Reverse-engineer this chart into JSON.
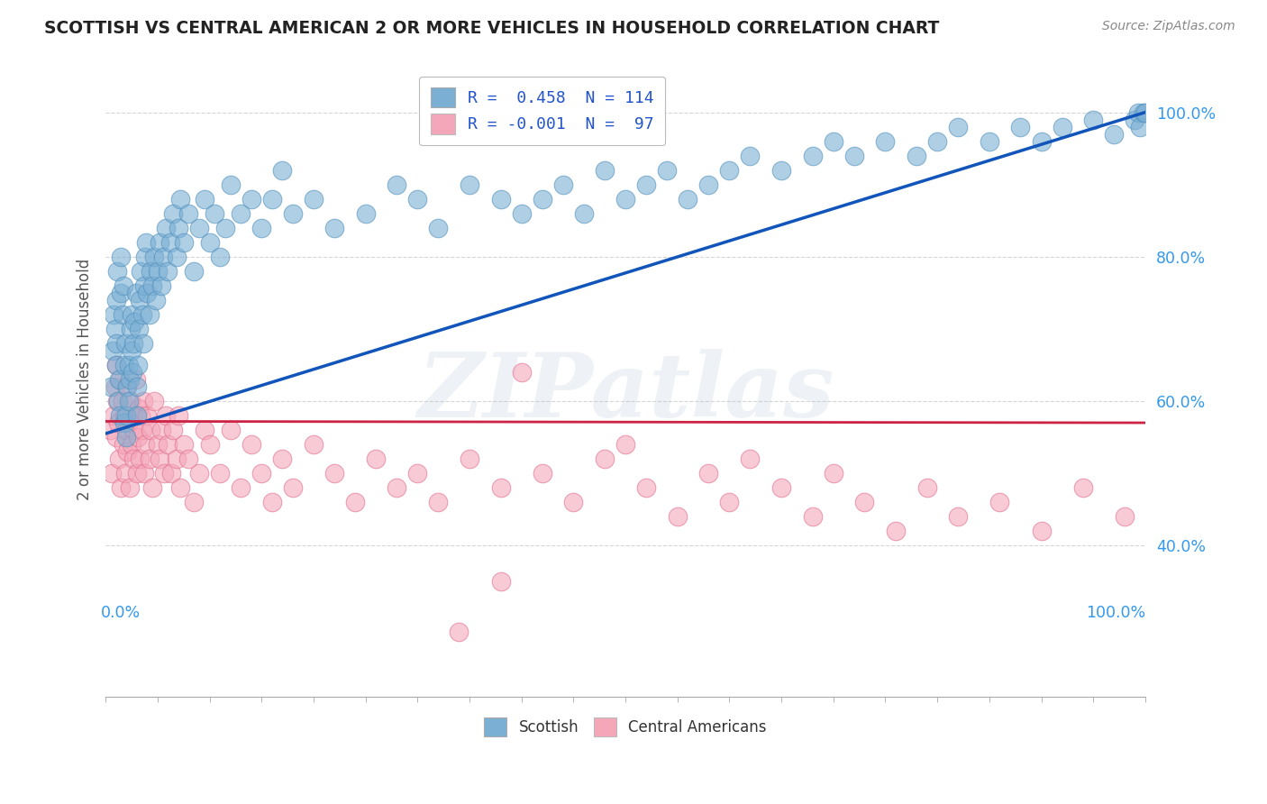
{
  "title": "SCOTTISH VS CENTRAL AMERICAN 2 OR MORE VEHICLES IN HOUSEHOLD CORRELATION CHART",
  "source": "Source: ZipAtlas.com",
  "ylabel": "2 or more Vehicles in Household",
  "yticks_labels": [
    "40.0%",
    "60.0%",
    "80.0%",
    "100.0%"
  ],
  "ytick_values": [
    0.4,
    0.6,
    0.8,
    1.0
  ],
  "legend_blue_text": "R =  0.458  N = 114",
  "legend_pink_text": "R = -0.001  N =  97",
  "legend_label_blue": "Scottish",
  "legend_label_pink": "Central Americans",
  "blue_color": "#7BAFD4",
  "pink_color": "#F4A7B9",
  "blue_edge": "#5090BB",
  "pink_edge": "#E07090",
  "trend_blue": "#1155BB",
  "trend_pink": "#CC2244",
  "watermark": "ZIPatlas",
  "watermark_color": "#AABBD4",
  "blue_line_x": [
    0.0,
    1.0
  ],
  "blue_line_y": [
    0.555,
    1.0
  ],
  "pink_line_x": [
    0.0,
    1.0
  ],
  "pink_line_y": [
    0.572,
    0.57
  ],
  "xlim": [
    0.0,
    1.0
  ],
  "ylim": [
    0.19,
    1.07
  ],
  "blue_scatter_x": [
    0.005,
    0.007,
    0.008,
    0.009,
    0.01,
    0.01,
    0.01,
    0.011,
    0.012,
    0.013,
    0.014,
    0.015,
    0.015,
    0.016,
    0.017,
    0.018,
    0.018,
    0.019,
    0.02,
    0.02,
    0.021,
    0.022,
    0.022,
    0.023,
    0.024,
    0.025,
    0.025,
    0.026,
    0.027,
    0.028,
    0.029,
    0.03,
    0.03,
    0.031,
    0.032,
    0.033,
    0.034,
    0.035,
    0.036,
    0.037,
    0.038,
    0.039,
    0.04,
    0.042,
    0.043,
    0.045,
    0.047,
    0.048,
    0.05,
    0.052,
    0.054,
    0.055,
    0.058,
    0.06,
    0.062,
    0.065,
    0.068,
    0.07,
    0.072,
    0.075,
    0.08,
    0.085,
    0.09,
    0.095,
    0.1,
    0.105,
    0.11,
    0.115,
    0.12,
    0.13,
    0.14,
    0.15,
    0.16,
    0.17,
    0.18,
    0.2,
    0.22,
    0.25,
    0.28,
    0.3,
    0.32,
    0.35,
    0.38,
    0.4,
    0.42,
    0.44,
    0.46,
    0.48,
    0.5,
    0.52,
    0.54,
    0.56,
    0.58,
    0.6,
    0.62,
    0.65,
    0.68,
    0.7,
    0.72,
    0.75,
    0.78,
    0.8,
    0.82,
    0.85,
    0.88,
    0.9,
    0.92,
    0.95,
    0.97,
    0.99,
    0.993,
    0.995,
    0.998,
    1.0
  ],
  "blue_scatter_y": [
    0.62,
    0.67,
    0.72,
    0.7,
    0.74,
    0.68,
    0.65,
    0.78,
    0.6,
    0.63,
    0.58,
    0.75,
    0.8,
    0.72,
    0.76,
    0.57,
    0.65,
    0.68,
    0.55,
    0.58,
    0.62,
    0.6,
    0.65,
    0.63,
    0.7,
    0.67,
    0.72,
    0.64,
    0.68,
    0.71,
    0.75,
    0.58,
    0.62,
    0.65,
    0.7,
    0.74,
    0.78,
    0.72,
    0.68,
    0.76,
    0.8,
    0.82,
    0.75,
    0.72,
    0.78,
    0.76,
    0.8,
    0.74,
    0.78,
    0.82,
    0.76,
    0.8,
    0.84,
    0.78,
    0.82,
    0.86,
    0.8,
    0.84,
    0.88,
    0.82,
    0.86,
    0.78,
    0.84,
    0.88,
    0.82,
    0.86,
    0.8,
    0.84,
    0.9,
    0.86,
    0.88,
    0.84,
    0.88,
    0.92,
    0.86,
    0.88,
    0.84,
    0.86,
    0.9,
    0.88,
    0.84,
    0.9,
    0.88,
    0.86,
    0.88,
    0.9,
    0.86,
    0.92,
    0.88,
    0.9,
    0.92,
    0.88,
    0.9,
    0.92,
    0.94,
    0.92,
    0.94,
    0.96,
    0.94,
    0.96,
    0.94,
    0.96,
    0.98,
    0.96,
    0.98,
    0.96,
    0.98,
    0.99,
    0.97,
    0.99,
    1.0,
    0.98,
    1.0,
    1.0
  ],
  "pink_scatter_x": [
    0.004,
    0.006,
    0.008,
    0.009,
    0.01,
    0.01,
    0.011,
    0.012,
    0.013,
    0.014,
    0.015,
    0.016,
    0.017,
    0.018,
    0.019,
    0.02,
    0.02,
    0.021,
    0.022,
    0.023,
    0.024,
    0.025,
    0.026,
    0.027,
    0.028,
    0.029,
    0.03,
    0.031,
    0.032,
    0.033,
    0.034,
    0.035,
    0.036,
    0.037,
    0.038,
    0.04,
    0.042,
    0.043,
    0.045,
    0.047,
    0.05,
    0.052,
    0.054,
    0.056,
    0.058,
    0.06,
    0.063,
    0.065,
    0.068,
    0.07,
    0.072,
    0.075,
    0.08,
    0.085,
    0.09,
    0.095,
    0.1,
    0.11,
    0.12,
    0.13,
    0.14,
    0.15,
    0.16,
    0.17,
    0.18,
    0.2,
    0.22,
    0.24,
    0.26,
    0.28,
    0.3,
    0.32,
    0.35,
    0.38,
    0.4,
    0.42,
    0.45,
    0.48,
    0.5,
    0.52,
    0.55,
    0.58,
    0.6,
    0.62,
    0.65,
    0.68,
    0.7,
    0.73,
    0.76,
    0.79,
    0.82,
    0.86,
    0.9,
    0.94,
    0.98,
    0.34,
    0.38
  ],
  "pink_scatter_y": [
    0.56,
    0.5,
    0.58,
    0.62,
    0.55,
    0.65,
    0.6,
    0.57,
    0.52,
    0.63,
    0.48,
    0.6,
    0.54,
    0.58,
    0.5,
    0.56,
    0.62,
    0.53,
    0.57,
    0.48,
    0.6,
    0.54,
    0.58,
    0.52,
    0.56,
    0.63,
    0.5,
    0.55,
    0.59,
    0.52,
    0.58,
    0.56,
    0.6,
    0.5,
    0.54,
    0.58,
    0.52,
    0.56,
    0.48,
    0.6,
    0.54,
    0.52,
    0.56,
    0.5,
    0.58,
    0.54,
    0.5,
    0.56,
    0.52,
    0.58,
    0.48,
    0.54,
    0.52,
    0.46,
    0.5,
    0.56,
    0.54,
    0.5,
    0.56,
    0.48,
    0.54,
    0.5,
    0.46,
    0.52,
    0.48,
    0.54,
    0.5,
    0.46,
    0.52,
    0.48,
    0.5,
    0.46,
    0.52,
    0.48,
    0.64,
    0.5,
    0.46,
    0.52,
    0.54,
    0.48,
    0.44,
    0.5,
    0.46,
    0.52,
    0.48,
    0.44,
    0.5,
    0.46,
    0.42,
    0.48,
    0.44,
    0.46,
    0.42,
    0.48,
    0.44,
    0.28,
    0.35
  ]
}
